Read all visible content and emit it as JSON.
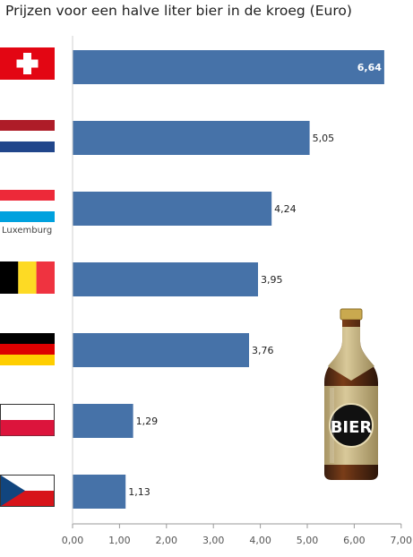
{
  "chart_data": {
    "type": "bar",
    "orientation": "horizontal",
    "title": "Prijzen voor een halve liter bier in de kroeg (Euro)",
    "categories": [
      "Switzerland",
      "Netherlands",
      "Luxemburg",
      "Belgium",
      "Germany",
      "Poland",
      "Czech Republic"
    ],
    "values": [
      6.64,
      5.05,
      4.24,
      3.95,
      3.76,
      1.29,
      1.13
    ],
    "value_labels": [
      "6,64",
      "5,05",
      "4,24",
      "3,95",
      "3,76",
      "1,29",
      "1,13"
    ],
    "xlim": [
      0,
      7
    ],
    "x_ticks": [
      0,
      1,
      2,
      3,
      4,
      5,
      6,
      7
    ],
    "x_tick_labels": [
      "0,00",
      "1,00",
      "2,00",
      "3,00",
      "4,00",
      "5,00",
      "6,00",
      "7,00"
    ],
    "grid": false,
    "bar_color": "#4672a8",
    "axis_color": "#9a9a9a"
  },
  "labels": {
    "luxemburg": "Luxemburg",
    "bottle_text": "BIER"
  },
  "flags": [
    {
      "country": "switzerland",
      "icon": "swiss-flag-icon",
      "colors": [
        "#e30613",
        "#ffffff"
      ]
    },
    {
      "country": "netherlands",
      "icon": "dutch-flag-icon",
      "colors": [
        "#ae1c28",
        "#ffffff",
        "#21468b"
      ]
    },
    {
      "country": "luxemburg",
      "icon": "luxembourg-flag-icon",
      "colors": [
        "#ed2939",
        "#ffffff",
        "#00a1de"
      ]
    },
    {
      "country": "belgium",
      "icon": "belgian-flag-icon",
      "colors": [
        "#000000",
        "#fdda24",
        "#ef3340"
      ]
    },
    {
      "country": "germany",
      "icon": "german-flag-icon",
      "colors": [
        "#000000",
        "#dd0000",
        "#ffce00"
      ]
    },
    {
      "country": "poland",
      "icon": "polish-flag-icon",
      "colors": [
        "#ffffff",
        "#dc143c"
      ]
    },
    {
      "country": "czech-republic",
      "icon": "czech-flag-icon",
      "colors": [
        "#ffffff",
        "#d7141a",
        "#11457e"
      ]
    }
  ],
  "decoration": {
    "bottle_icon": "beer-bottle-icon"
  }
}
